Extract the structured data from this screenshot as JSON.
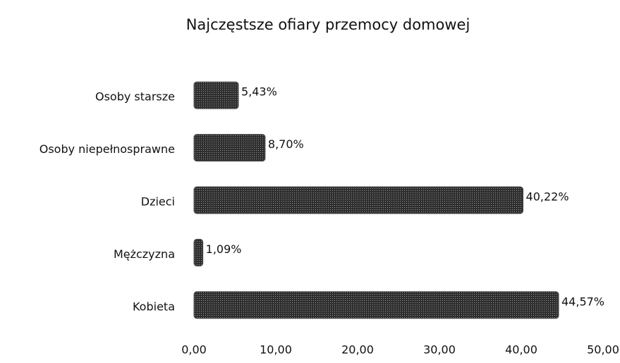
{
  "chart_data": {
    "type": "bar",
    "orientation": "horizontal",
    "title": "Najczęstsze ofiary przemocy domowej",
    "categories": [
      "Osoby starsze",
      "Osoby niepełnosprawne",
      "Dzieci",
      "Mężczyzna",
      "Kobieta"
    ],
    "values": [
      5.43,
      8.7,
      40.22,
      1.09,
      44.57
    ],
    "value_labels": [
      "5,43%",
      "8,70%",
      "40,22%",
      "1,09%",
      "44,57%"
    ],
    "color": "#4d4d4d",
    "xlim": [
      0,
      50
    ],
    "xticks": [
      {
        "value": 0,
        "label": "0,00"
      },
      {
        "value": 10,
        "label": "10,00"
      },
      {
        "value": 20,
        "label": "20,00"
      },
      {
        "value": 30,
        "label": "30,00"
      },
      {
        "value": 40,
        "label": "40,00"
      },
      {
        "value": 50,
        "label": "50,00"
      }
    ],
    "grid": false
  }
}
